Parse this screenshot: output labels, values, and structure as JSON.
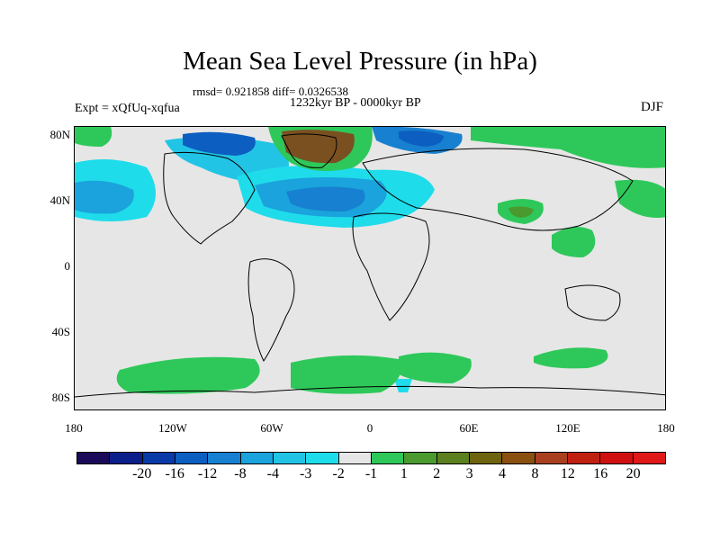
{
  "title": "Mean Sea Level Pressure (in hPa)",
  "stats": "rmsd= 0.921858 diff= 0.0326538",
  "period": "1232kyr BP - 0000kyr BP",
  "expt": "Expt = xQfUq-xqfua",
  "season": "DJF",
  "y_labels": [
    "80N",
    "40N",
    "0",
    "40S",
    "80S"
  ],
  "x_labels": [
    "180",
    "120W",
    "60W",
    "0",
    "60E",
    "120E",
    "180"
  ],
  "colorbar": {
    "colors": [
      "#1b0a5a",
      "#0b1f8a",
      "#0a3aa8",
      "#0c5fc0",
      "#1780d0",
      "#1aa3dc",
      "#22c4e6",
      "#1fdcea",
      "#e6e6e6",
      "#2ec85a",
      "#4a9a30",
      "#5c8020",
      "#6e6410",
      "#8a5010",
      "#a84020",
      "#c02010",
      "#d01010",
      "#e01818"
    ],
    "labels": [
      "-20",
      "-16",
      "-12",
      "-8",
      "-4",
      "-3",
      "-2",
      "-1",
      "1",
      "2",
      "3",
      "4",
      "8",
      "12",
      "16",
      "20"
    ]
  },
  "anomaly_colors": {
    "neg_weak": "#1fdcea",
    "neg_mid": "#22c4e6",
    "neg_strong": "#1aa3dc",
    "neg_stronger": "#1780d0",
    "neg_deep": "#0c5fc0",
    "pos_weak": "#2ec85a",
    "pos_mid": "#4a9a30",
    "pos_strong": "#6e6410",
    "pos_deep": "#7a5020"
  }
}
